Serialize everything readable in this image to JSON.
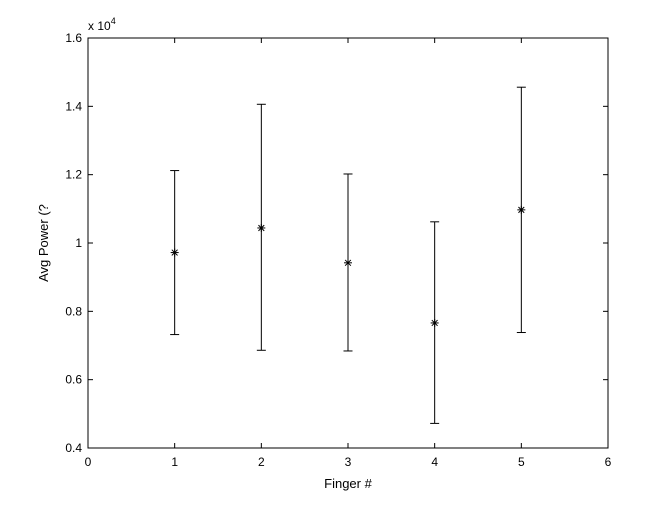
{
  "chart_data": {
    "type": "errorbar",
    "xlabel": "Finger #",
    "ylabel": "Avg Power (?",
    "exponent_base": "x 10",
    "exponent_power": "4",
    "xlim": [
      0,
      6
    ],
    "ylim": [
      0.4,
      1.6
    ],
    "xticks": [
      "0",
      "1",
      "2",
      "3",
      "4",
      "5",
      "6"
    ],
    "yticks": [
      "0.4",
      "0.6",
      "0.8",
      "1",
      "1.2",
      "1.4",
      "1.6"
    ],
    "grid": false,
    "marker": "*",
    "series": [
      {
        "x": [
          1,
          2,
          3,
          4,
          5
        ],
        "y": [
          0.972,
          1.044,
          0.942,
          0.766,
          1.097
        ],
        "lower": [
          0.732,
          0.686,
          0.684,
          0.472,
          0.738
        ],
        "upper": [
          1.212,
          1.406,
          1.202,
          1.062,
          1.456
        ]
      }
    ]
  }
}
